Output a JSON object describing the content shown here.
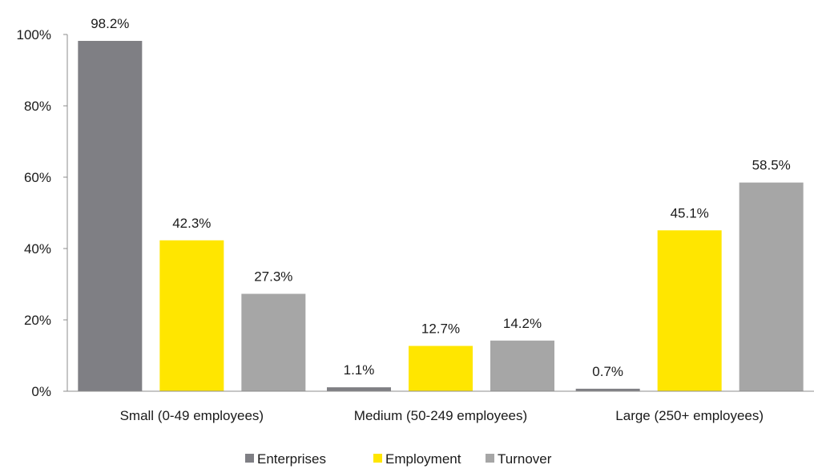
{
  "chart_data": {
    "type": "bar",
    "title": "",
    "xlabel": "",
    "ylabel": "",
    "categories": [
      "Small (0-49 employees)",
      "Medium (50-249 employees)",
      "Large (250+ employees)"
    ],
    "series": [
      {
        "name": "Enterprises",
        "values": [
          98.2,
          1.1,
          0.7
        ],
        "color": "#7f7f84"
      },
      {
        "name": "Employment",
        "values": [
          42.3,
          12.7,
          45.1
        ],
        "color": "#ffe600"
      },
      {
        "name": "Turnover",
        "values": [
          27.3,
          14.2,
          58.5
        ],
        "color": "#a6a6a6"
      }
    ],
    "data_labels": [
      [
        "98.2%",
        "1.1%",
        "0.7%"
      ],
      [
        "42.3%",
        "12.7%",
        "45.1%"
      ],
      [
        "27.3%",
        "14.2%",
        "58.5%"
      ]
    ],
    "ylim": [
      0,
      100
    ],
    "yticks": [
      0,
      20,
      40,
      60,
      80,
      100
    ],
    "ytick_labels": [
      "0%",
      "20%",
      "40%",
      "60%",
      "80%",
      "100%"
    ],
    "grid": false,
    "legend_position": "bottom"
  }
}
